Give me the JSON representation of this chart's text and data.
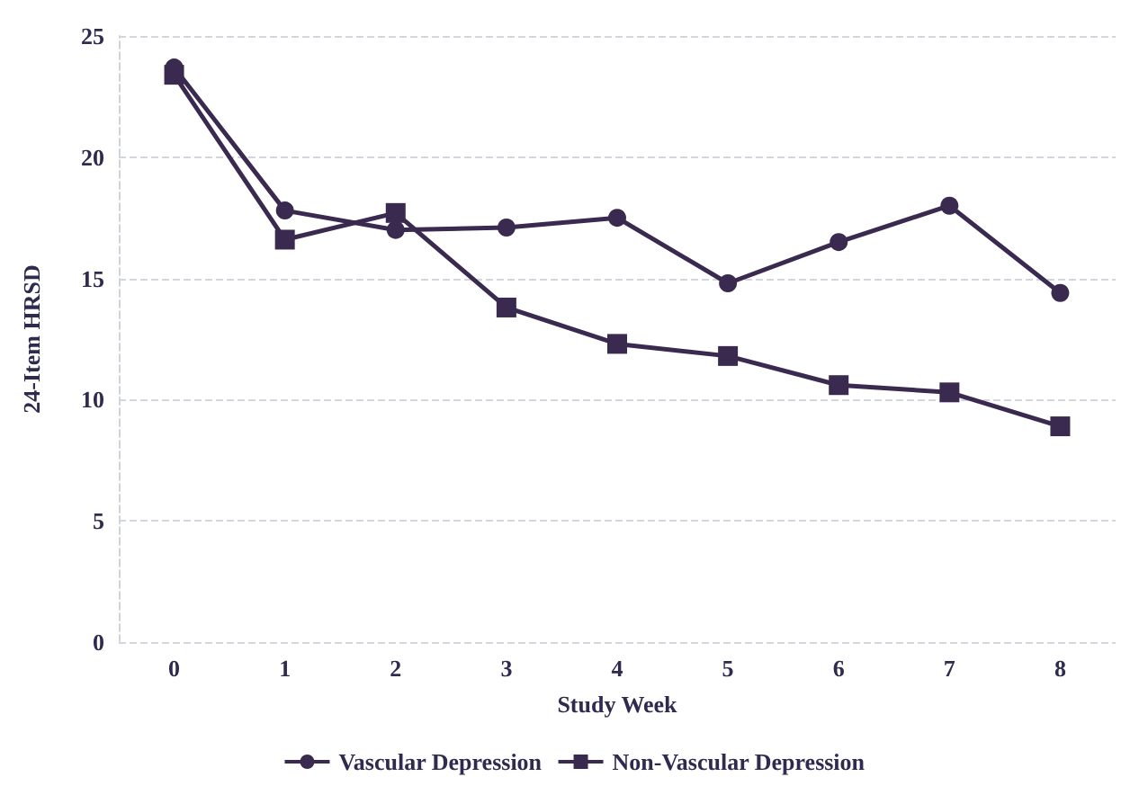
{
  "chart_data": {
    "type": "line",
    "xlabel": "Study Week",
    "ylabel": "24-Item HRSD",
    "categories": [
      "0",
      "1",
      "2",
      "3",
      "4",
      "5",
      "6",
      "7",
      "8"
    ],
    "series": [
      {
        "name": "Vascular Depression",
        "color": "#3b2a4f",
        "marker": "circle",
        "values": [
          23.7,
          17.8,
          17.0,
          17.1,
          17.5,
          14.8,
          16.5,
          18.0,
          14.4
        ]
      },
      {
        "name": "Non-Vascular Depression",
        "color": "#3b2a4f",
        "marker": "square",
        "values": [
          23.4,
          16.6,
          17.7,
          13.8,
          12.3,
          11.8,
          10.6,
          10.3,
          8.9
        ]
      }
    ],
    "ylim": [
      0,
      25
    ],
    "yticks": [
      0,
      5,
      10,
      15,
      20,
      25
    ],
    "grid": "y",
    "legend": "bottom",
    "line_style": "solid"
  }
}
